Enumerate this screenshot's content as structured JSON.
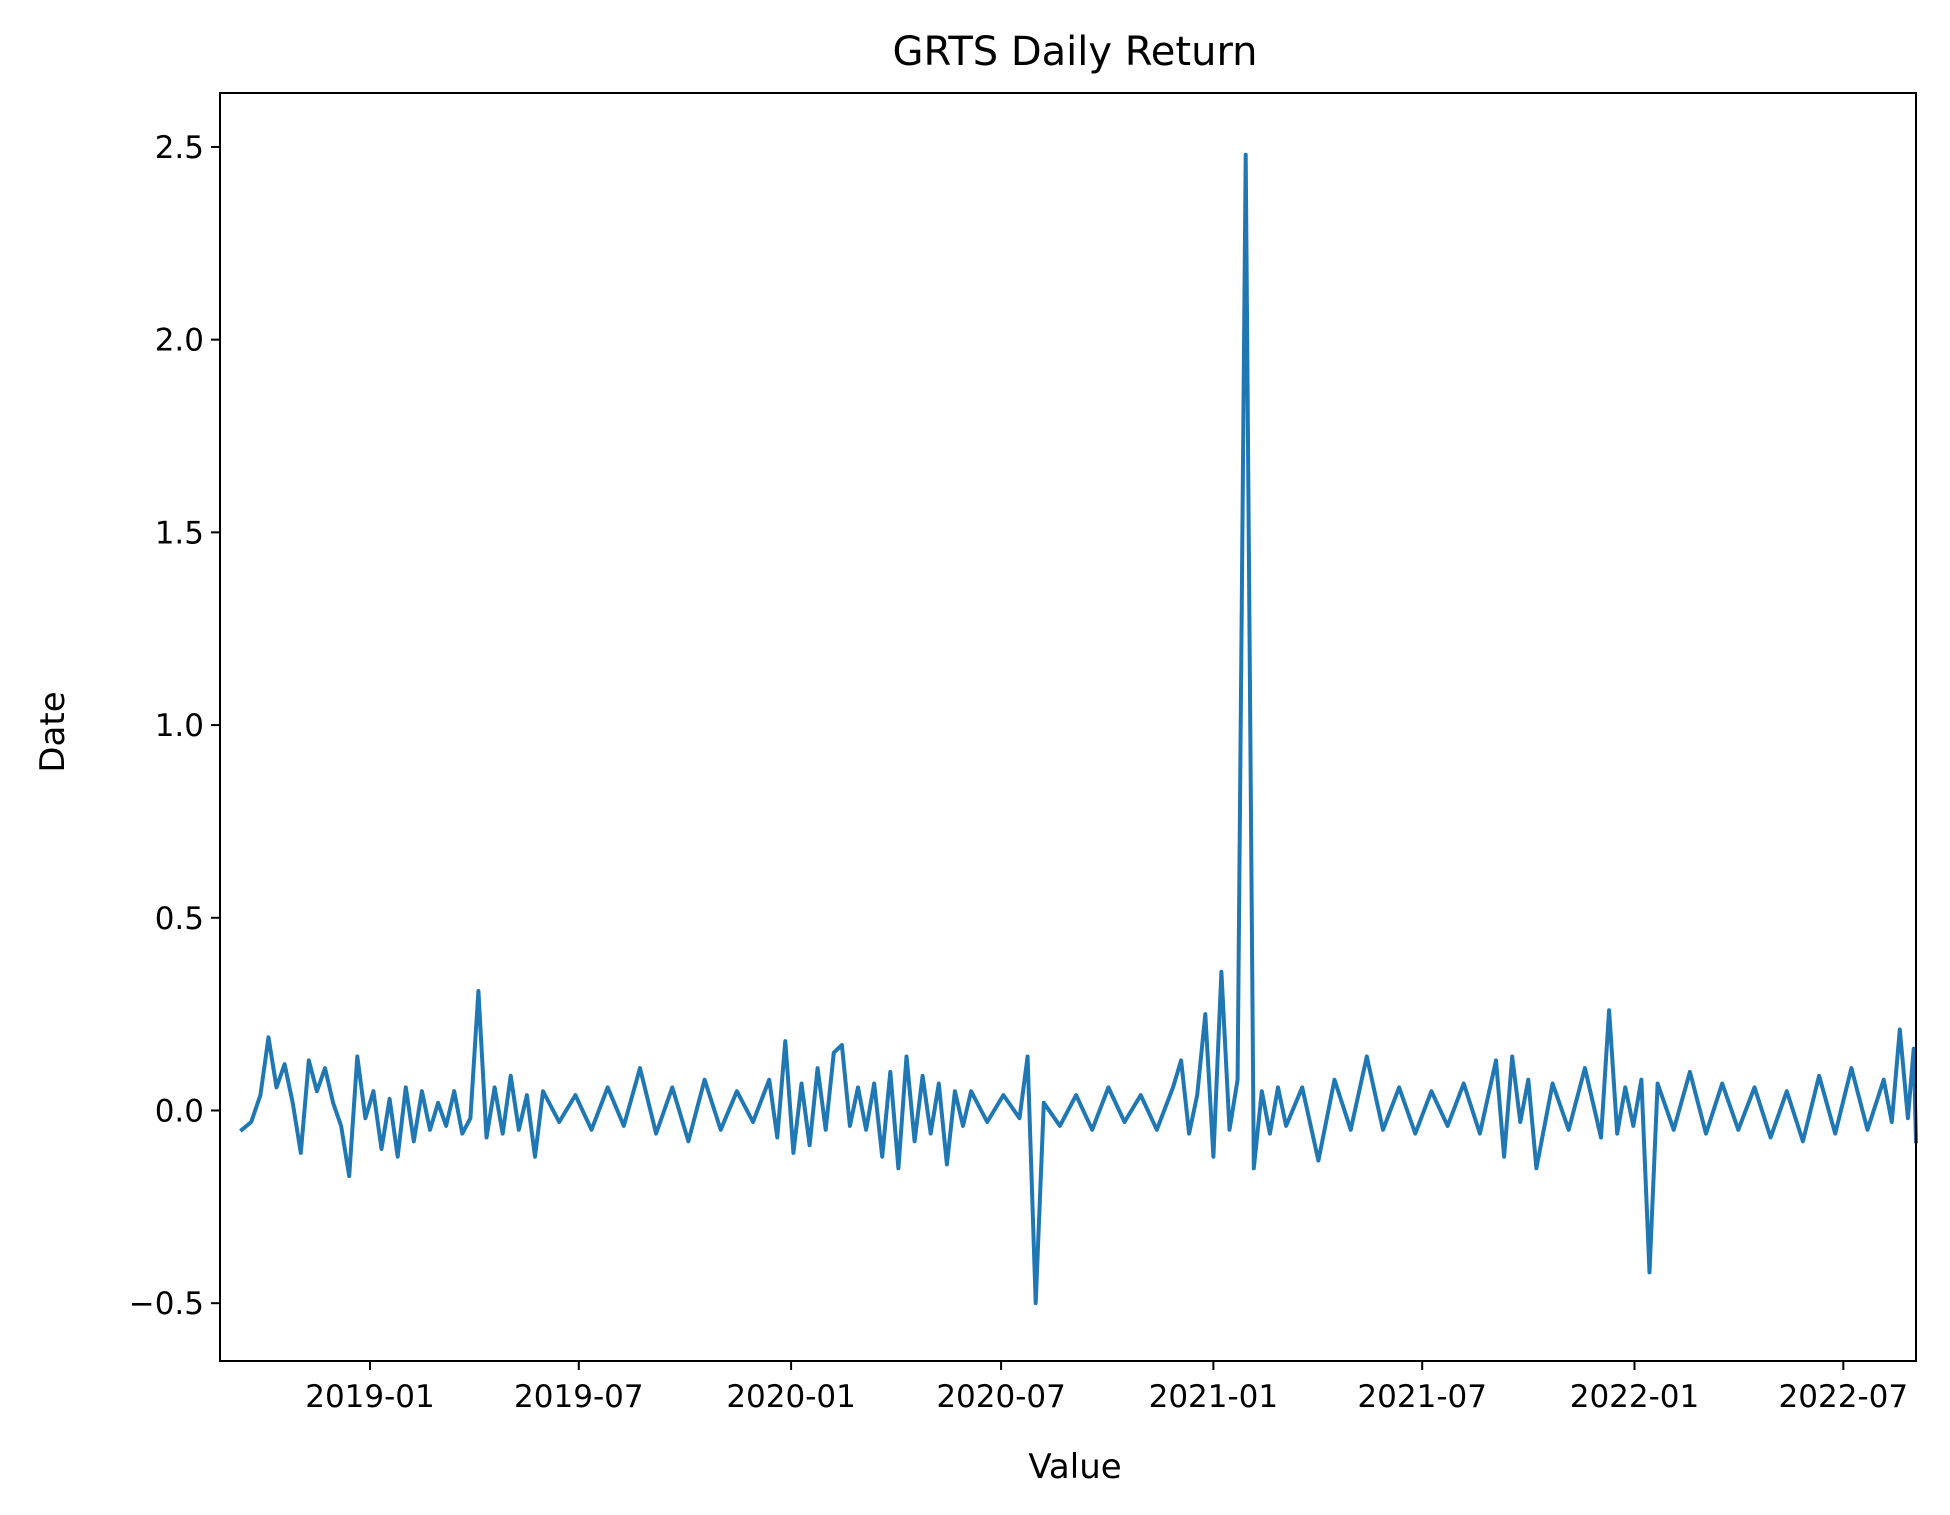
{
  "chart_data": {
    "type": "line",
    "title": "GRTS Daily Return",
    "xlabel": "Value",
    "ylabel": "Date",
    "x_axis_type": "date",
    "xlim": [
      "2018-08-24",
      "2022-09-02"
    ],
    "ylim": [
      -0.65,
      2.64
    ],
    "x_ticks": [
      "2019-01",
      "2019-07",
      "2020-01",
      "2020-07",
      "2021-01",
      "2021-07",
      "2022-01",
      "2022-07"
    ],
    "y_ticks": [
      -0.5,
      0.0,
      0.5,
      1.0,
      1.5,
      2.0,
      2.5
    ],
    "y_tick_labels": [
      "−0.5",
      "0.0",
      "0.5",
      "1.0",
      "1.5",
      "2.0",
      "2.5"
    ],
    "grid": false,
    "series": [
      {
        "color": "#1f77b4",
        "points": [
          [
            "2018-09-12",
            -0.05
          ],
          [
            "2018-09-20",
            -0.03
          ],
          [
            "2018-09-28",
            0.04
          ],
          [
            "2018-10-05",
            0.19
          ],
          [
            "2018-10-12",
            0.06
          ],
          [
            "2018-10-19",
            0.12
          ],
          [
            "2018-10-26",
            0.02
          ],
          [
            "2018-11-02",
            -0.11
          ],
          [
            "2018-11-09",
            0.13
          ],
          [
            "2018-11-16",
            0.05
          ],
          [
            "2018-11-23",
            0.11
          ],
          [
            "2018-11-30",
            0.02
          ],
          [
            "2018-12-07",
            -0.04
          ],
          [
            "2018-12-14",
            -0.17
          ],
          [
            "2018-12-21",
            0.14
          ],
          [
            "2018-12-28",
            -0.02
          ],
          [
            "2019-01-04",
            0.05
          ],
          [
            "2019-01-11",
            -0.1
          ],
          [
            "2019-01-18",
            0.03
          ],
          [
            "2019-01-25",
            -0.12
          ],
          [
            "2019-02-01",
            0.06
          ],
          [
            "2019-02-08",
            -0.08
          ],
          [
            "2019-02-15",
            0.05
          ],
          [
            "2019-02-22",
            -0.05
          ],
          [
            "2019-03-01",
            0.02
          ],
          [
            "2019-03-08",
            -0.04
          ],
          [
            "2019-03-15",
            0.05
          ],
          [
            "2019-03-22",
            -0.06
          ],
          [
            "2019-03-29",
            -0.02
          ],
          [
            "2019-04-05",
            0.31
          ],
          [
            "2019-04-12",
            -0.07
          ],
          [
            "2019-04-19",
            0.06
          ],
          [
            "2019-04-26",
            -0.06
          ],
          [
            "2019-05-03",
            0.09
          ],
          [
            "2019-05-10",
            -0.05
          ],
          [
            "2019-05-17",
            0.04
          ],
          [
            "2019-05-24",
            -0.12
          ],
          [
            "2019-05-31",
            0.05
          ],
          [
            "2019-06-14",
            -0.03
          ],
          [
            "2019-06-28",
            0.04
          ],
          [
            "2019-07-12",
            -0.05
          ],
          [
            "2019-07-26",
            0.06
          ],
          [
            "2019-08-09",
            -0.04
          ],
          [
            "2019-08-23",
            0.11
          ],
          [
            "2019-09-06",
            -0.06
          ],
          [
            "2019-09-20",
            0.06
          ],
          [
            "2019-10-04",
            -0.08
          ],
          [
            "2019-10-18",
            0.08
          ],
          [
            "2019-11-01",
            -0.05
          ],
          [
            "2019-11-15",
            0.05
          ],
          [
            "2019-11-29",
            -0.03
          ],
          [
            "2019-12-13",
            0.08
          ],
          [
            "2019-12-20",
            -0.07
          ],
          [
            "2019-12-27",
            0.18
          ],
          [
            "2020-01-03",
            -0.11
          ],
          [
            "2020-01-10",
            0.07
          ],
          [
            "2020-01-17",
            -0.09
          ],
          [
            "2020-01-24",
            0.11
          ],
          [
            "2020-01-31",
            -0.05
          ],
          [
            "2020-02-07",
            0.15
          ],
          [
            "2020-02-14",
            0.17
          ],
          [
            "2020-02-21",
            -0.04
          ],
          [
            "2020-02-28",
            0.06
          ],
          [
            "2020-03-06",
            -0.05
          ],
          [
            "2020-03-13",
            0.07
          ],
          [
            "2020-03-20",
            -0.12
          ],
          [
            "2020-03-27",
            0.1
          ],
          [
            "2020-04-03",
            -0.15
          ],
          [
            "2020-04-10",
            0.14
          ],
          [
            "2020-04-17",
            -0.08
          ],
          [
            "2020-04-24",
            0.09
          ],
          [
            "2020-05-01",
            -0.06
          ],
          [
            "2020-05-08",
            0.07
          ],
          [
            "2020-05-15",
            -0.14
          ],
          [
            "2020-05-22",
            0.05
          ],
          [
            "2020-05-29",
            -0.04
          ],
          [
            "2020-06-05",
            0.05
          ],
          [
            "2020-06-19",
            -0.03
          ],
          [
            "2020-07-03",
            0.04
          ],
          [
            "2020-07-17",
            -0.02
          ],
          [
            "2020-07-24",
            0.14
          ],
          [
            "2020-07-31",
            -0.5
          ],
          [
            "2020-08-07",
            0.02
          ],
          [
            "2020-08-21",
            -0.04
          ],
          [
            "2020-09-04",
            0.04
          ],
          [
            "2020-09-18",
            -0.05
          ],
          [
            "2020-10-02",
            0.06
          ],
          [
            "2020-10-16",
            -0.03
          ],
          [
            "2020-10-30",
            0.04
          ],
          [
            "2020-11-13",
            -0.05
          ],
          [
            "2020-11-27",
            0.06
          ],
          [
            "2020-12-04",
            0.13
          ],
          [
            "2020-12-11",
            -0.06
          ],
          [
            "2020-12-18",
            0.04
          ],
          [
            "2020-12-25",
            0.25
          ],
          [
            "2021-01-01",
            -0.12
          ],
          [
            "2021-01-08",
            0.36
          ],
          [
            "2021-01-15",
            -0.05
          ],
          [
            "2021-01-22",
            0.08
          ],
          [
            "2021-01-29",
            2.48
          ],
          [
            "2021-02-05",
            -0.15
          ],
          [
            "2021-02-12",
            0.05
          ],
          [
            "2021-02-19",
            -0.06
          ],
          [
            "2021-02-26",
            0.06
          ],
          [
            "2021-03-05",
            -0.04
          ],
          [
            "2021-03-19",
            0.06
          ],
          [
            "2021-04-02",
            -0.13
          ],
          [
            "2021-04-16",
            0.08
          ],
          [
            "2021-04-30",
            -0.05
          ],
          [
            "2021-05-14",
            0.14
          ],
          [
            "2021-05-28",
            -0.05
          ],
          [
            "2021-06-11",
            0.06
          ],
          [
            "2021-06-25",
            -0.06
          ],
          [
            "2021-07-09",
            0.05
          ],
          [
            "2021-07-23",
            -0.04
          ],
          [
            "2021-08-06",
            0.07
          ],
          [
            "2021-08-20",
            -0.06
          ],
          [
            "2021-09-03",
            0.13
          ],
          [
            "2021-09-10",
            -0.12
          ],
          [
            "2021-09-17",
            0.14
          ],
          [
            "2021-09-24",
            -0.03
          ],
          [
            "2021-10-01",
            0.08
          ],
          [
            "2021-10-08",
            -0.15
          ],
          [
            "2021-10-22",
            0.07
          ],
          [
            "2021-11-05",
            -0.05
          ],
          [
            "2021-11-19",
            0.11
          ],
          [
            "2021-12-03",
            -0.07
          ],
          [
            "2021-12-10",
            0.26
          ],
          [
            "2021-12-17",
            -0.06
          ],
          [
            "2021-12-24",
            0.06
          ],
          [
            "2021-12-31",
            -0.04
          ],
          [
            "2022-01-07",
            0.08
          ],
          [
            "2022-01-14",
            -0.42
          ],
          [
            "2022-01-21",
            0.07
          ],
          [
            "2022-02-04",
            -0.05
          ],
          [
            "2022-02-18",
            0.1
          ],
          [
            "2022-03-04",
            -0.06
          ],
          [
            "2022-03-18",
            0.07
          ],
          [
            "2022-04-01",
            -0.05
          ],
          [
            "2022-04-15",
            0.06
          ],
          [
            "2022-04-29",
            -0.07
          ],
          [
            "2022-05-13",
            0.05
          ],
          [
            "2022-05-27",
            -0.08
          ],
          [
            "2022-06-10",
            0.09
          ],
          [
            "2022-06-24",
            -0.06
          ],
          [
            "2022-07-08",
            0.11
          ],
          [
            "2022-07-22",
            -0.05
          ],
          [
            "2022-08-05",
            0.08
          ],
          [
            "2022-08-12",
            -0.03
          ],
          [
            "2022-08-19",
            0.21
          ],
          [
            "2022-08-26",
            -0.02
          ],
          [
            "2022-08-31",
            0.16
          ],
          [
            "2022-09-02",
            -0.08
          ]
        ]
      }
    ]
  }
}
